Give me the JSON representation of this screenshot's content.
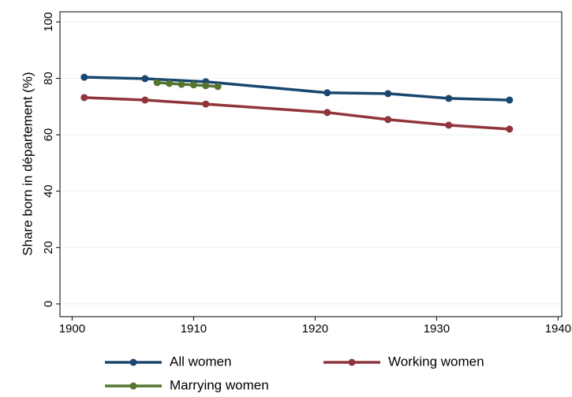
{
  "chart_data": {
    "type": "line",
    "ylabel": "Share born in département (%)",
    "xlim": [
      1899,
      1940.3
    ],
    "xticks": [
      1900,
      1910,
      1920,
      1930,
      1940
    ],
    "ylim": [
      -4.5,
      103.6
    ],
    "yticks": [
      0,
      20,
      40,
      60,
      80,
      100
    ],
    "grid": true,
    "legend": "bottom",
    "series": [
      {
        "name": "All women",
        "color": "#1a476f",
        "x": [
          1901,
          1906,
          1911,
          1921,
          1926,
          1931,
          1936
        ],
        "values": [
          80.4,
          79.9,
          78.8,
          74.9,
          74.6,
          72.9,
          72.3
        ]
      },
      {
        "name": "Working women",
        "color": "#90353b",
        "x": [
          1901,
          1906,
          1911,
          1921,
          1926,
          1931,
          1936
        ],
        "values": [
          73.2,
          72.3,
          70.9,
          67.9,
          65.4,
          63.4,
          62.0
        ]
      },
      {
        "name": "Marrying women",
        "color": "#55752f",
        "x": [
          1907,
          1908,
          1909,
          1910,
          1911,
          1912
        ],
        "values": [
          78.5,
          78.2,
          77.9,
          77.7,
          77.4,
          77.1
        ]
      }
    ]
  }
}
